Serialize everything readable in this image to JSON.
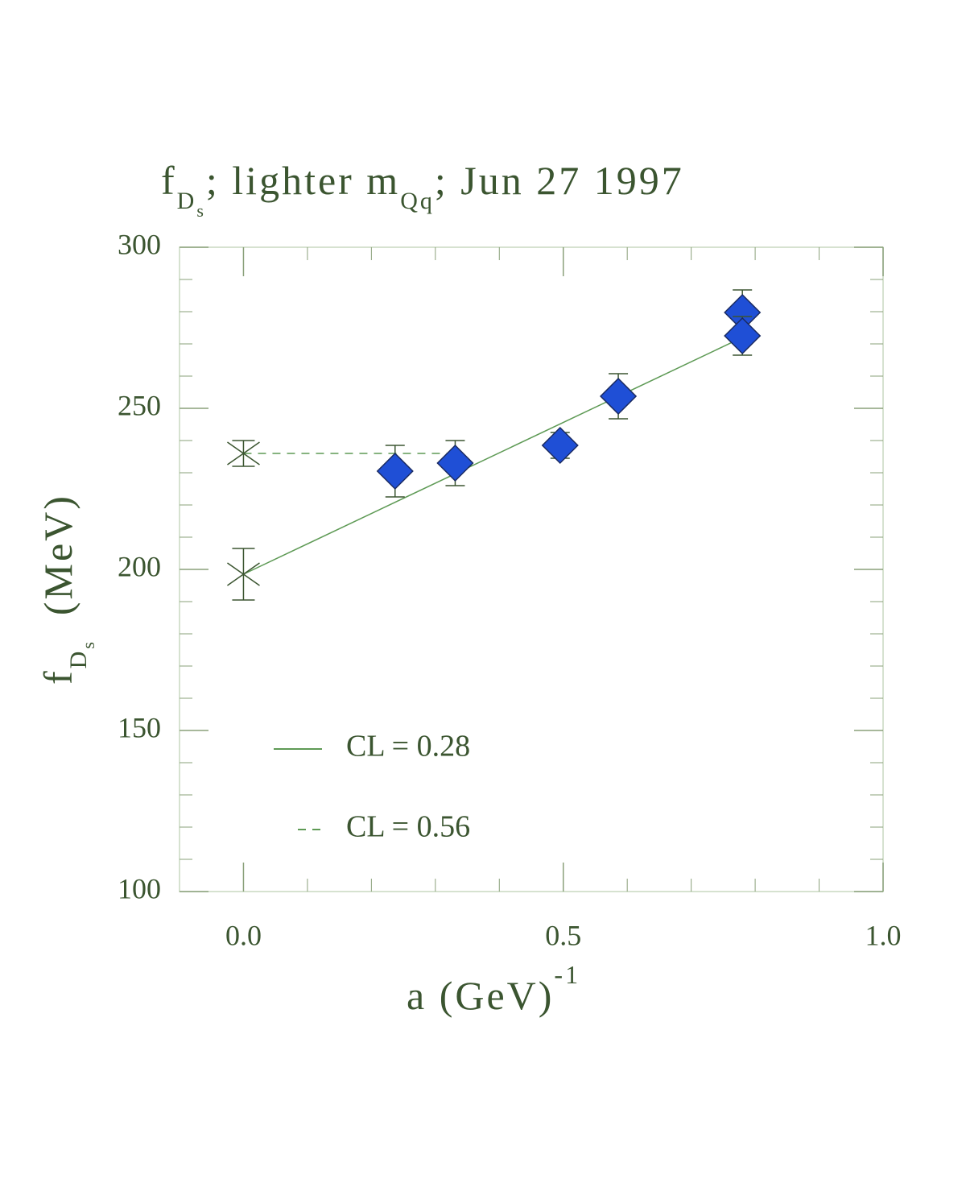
{
  "chart_data": {
    "type": "scatter",
    "title_parts": [
      "f",
      "D",
      "s",
      "; lighter m",
      "Qq",
      "; Jun 27 1997"
    ],
    "y_label_parts": [
      "f",
      "D",
      "s",
      "(MeV)"
    ],
    "x_label_parts": [
      "a (GeV)",
      "-1"
    ],
    "xlim": [
      -0.1,
      1.0
    ],
    "ylim": [
      100,
      300
    ],
    "xticks": [
      {
        "value": 0,
        "label": "0.0"
      },
      0.5,
      {
        "value": 1,
        "label": "1.0"
      }
    ],
    "yticks": [
      100,
      150,
      200,
      250,
      300
    ],
    "xminorticks": [
      0.1,
      0.2,
      0.3,
      0.4,
      0.6,
      0.7,
      0.8,
      0.9
    ],
    "yminorticks": [
      110,
      120,
      130,
      140,
      160,
      170,
      180,
      190,
      210,
      220,
      230,
      240,
      260,
      270,
      280,
      290
    ],
    "points": {
      "color": "#1f4fd6",
      "x": [
        0.237,
        0.331,
        0.495,
        0.586,
        0.78,
        0.78
      ],
      "values": [
        230.5,
        233,
        238.5,
        253.75,
        279.75,
        272.5
      ],
      "errors": [
        8,
        7,
        4,
        7,
        7,
        6
      ]
    },
    "extrapolations": {
      "color": "#3b5530",
      "x": [
        0,
        0
      ],
      "values": [
        236,
        198.5
      ],
      "errors": [
        4,
        8
      ]
    },
    "series": [
      {
        "name": "CL = 0.28",
        "color": "#5e9a55",
        "dash": false,
        "x": [
          0,
          0.78
        ],
        "values": [
          198.5,
          272
        ]
      },
      {
        "name": "CL = 0.56",
        "color": "#5e9a55",
        "dash": true,
        "x": [
          0,
          0.331
        ],
        "values": [
          236,
          236
        ]
      }
    ]
  }
}
